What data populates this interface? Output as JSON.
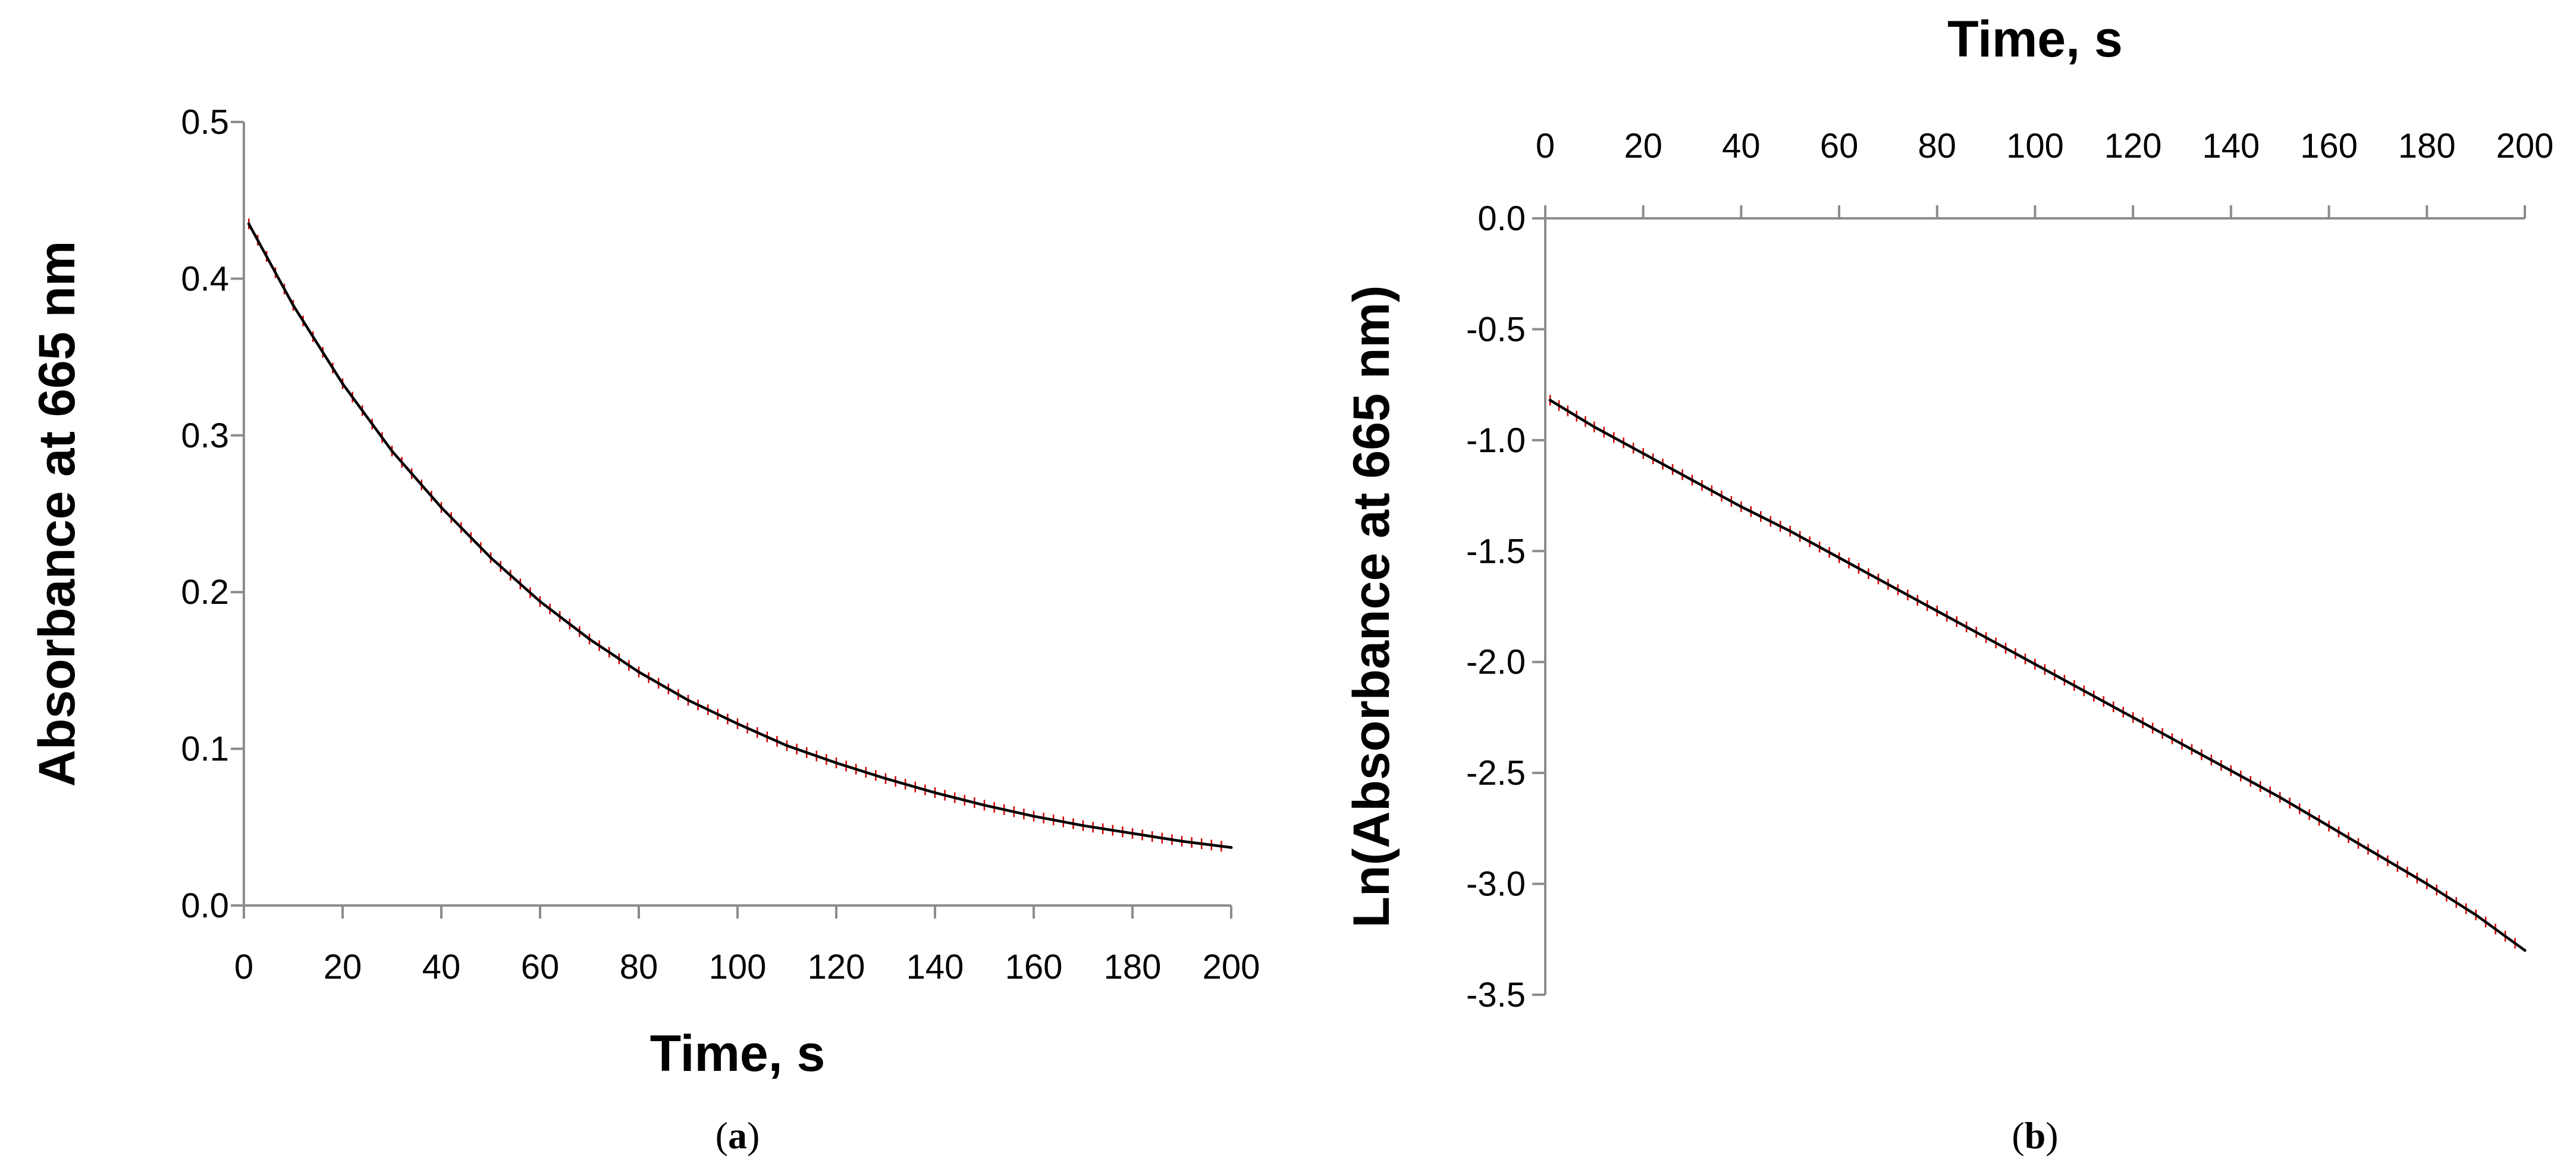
{
  "chart_data": [
    {
      "panel": "(a)",
      "panel_letter": "a",
      "type": "line",
      "xlabel": "Time, s",
      "ylabel": "Absorbance at 665 nm",
      "xlim": [
        0,
        200
      ],
      "ylim": [
        0,
        0.5
      ],
      "x_ticks": [
        0,
        20,
        40,
        60,
        80,
        100,
        120,
        140,
        160,
        180,
        200
      ],
      "y_ticks": [
        0.0,
        0.1,
        0.2,
        0.3,
        0.4,
        0.5
      ],
      "x_axis_position": "bottom",
      "grid": false,
      "legend": "none",
      "series": [
        {
          "color": "#000000",
          "error_bar_color": "#d40000",
          "x": [
            1,
            10,
            20,
            30,
            40,
            50,
            60,
            70,
            80,
            90,
            100,
            110,
            120,
            130,
            140,
            150,
            160,
            170,
            180,
            190,
            200
          ],
          "y": [
            0.435,
            0.383,
            0.333,
            0.29,
            0.254,
            0.222,
            0.194,
            0.17,
            0.149,
            0.131,
            0.116,
            0.102,
            0.091,
            0.081,
            0.072,
            0.064,
            0.057,
            0.051,
            0.046,
            0.041,
            0.037
          ]
        }
      ]
    },
    {
      "panel": "(b)",
      "panel_letter": "b",
      "type": "line",
      "xlabel": "Time, s",
      "ylabel": "Ln(Absorbance at 665 nm)",
      "xlim": [
        0,
        200
      ],
      "ylim": [
        -3.5,
        0.0
      ],
      "x_ticks": [
        0,
        20,
        40,
        60,
        80,
        100,
        120,
        140,
        160,
        180,
        200
      ],
      "y_ticks": [
        0.0,
        -0.5,
        -1.0,
        -1.5,
        -2.0,
        -2.5,
        -3.0,
        -3.5
      ],
      "x_axis_position": "top",
      "grid": false,
      "legend": "none",
      "series": [
        {
          "color": "#000000",
          "error_bar_color": "#d40000",
          "x": [
            1,
            10,
            20,
            30,
            40,
            50,
            60,
            70,
            80,
            90,
            100,
            110,
            120,
            130,
            140,
            150,
            160,
            170,
            180,
            190,
            200
          ],
          "y": [
            -0.82,
            -0.94,
            -1.06,
            -1.18,
            -1.3,
            -1.41,
            -1.53,
            -1.65,
            -1.77,
            -1.89,
            -2.01,
            -2.13,
            -2.25,
            -2.37,
            -2.49,
            -2.61,
            -2.74,
            -2.87,
            -3.0,
            -3.14,
            -3.3
          ]
        }
      ]
    }
  ]
}
